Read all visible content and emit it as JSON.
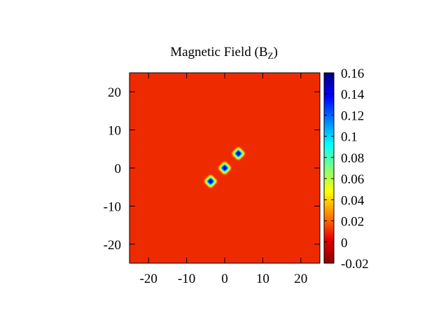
{
  "chart_data": {
    "type": "heatmap",
    "title": "Magnetic Field (B",
    "title_subscript": "Z",
    "title_suffix": ")",
    "xlim": [
      -25,
      25
    ],
    "ylim": [
      -25,
      25
    ],
    "x_ticks": [
      -20,
      -10,
      0,
      10,
      20
    ],
    "y_ticks": [
      -20,
      -10,
      0,
      10,
      20
    ],
    "colorbar": {
      "range": [
        -0.02,
        0.16
      ],
      "ticks": [
        "0.16",
        "0.14",
        "0.12",
        "0.1",
        "0.08",
        "0.06",
        "0.04",
        "0.02",
        "0",
        "-0.02"
      ],
      "tick_values": [
        0.16,
        0.14,
        0.12,
        0.1,
        0.08,
        0.06,
        0.04,
        0.02,
        0,
        -0.02
      ],
      "palette": [
        "#8b0000",
        "#e60000",
        "#ff8000",
        "#ffff00",
        "#80ff80",
        "#00ffff",
        "#0080ff",
        "#0000ff",
        "#000080"
      ]
    },
    "background_value": 0.01,
    "peaks": [
      {
        "x": -3.7,
        "y": -3.5,
        "value": 0.16
      },
      {
        "x": 0.0,
        "y": 0.0,
        "value": 0.16
      },
      {
        "x": 3.6,
        "y": 3.8,
        "value": 0.16
      }
    ],
    "grid": false
  }
}
